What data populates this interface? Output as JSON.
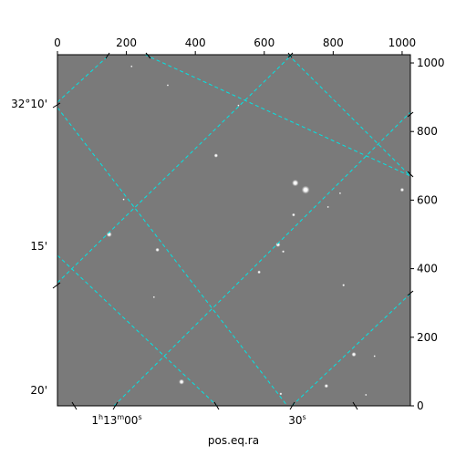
{
  "chart_data": {
    "type": "image",
    "xlabel": "pos.eq.ra",
    "top_axis": {
      "ticks": [
        0,
        200,
        400,
        600,
        800,
        1000
      ],
      "labels": [
        "0",
        "200",
        "400",
        "600",
        "800",
        "1000"
      ],
      "range": [
        0,
        1024
      ]
    },
    "right_axis": {
      "ticks": [
        0,
        200,
        400,
        600,
        800,
        1000
      ],
      "labels": [
        "0",
        "200",
        "400",
        "600",
        "800",
        "1000"
      ],
      "range": [
        0,
        1024
      ]
    },
    "ra_ticks": [
      {
        "label": "1h13m00s",
        "hours": "1",
        "minutes": "13",
        "seconds": "00"
      },
      {
        "label": "30s",
        "seconds": "30"
      }
    ],
    "dec_ticks": [
      {
        "label": "32°10'"
      },
      {
        "label": "15'"
      },
      {
        "label": "20'"
      }
    ],
    "grid": true,
    "grid_color": "#00e5e5",
    "background_color": "#7a7a7a",
    "sources": [
      {
        "x": 320,
        "y": 935,
        "r": 3
      },
      {
        "x": 525,
        "y": 876,
        "r": 2
      },
      {
        "x": 460,
        "y": 730,
        "r": 6
      },
      {
        "x": 690,
        "y": 650,
        "r": 10
      },
      {
        "x": 720,
        "y": 630,
        "r": 12
      },
      {
        "x": 1000,
        "y": 630,
        "r": 6
      },
      {
        "x": 685,
        "y": 557,
        "r": 5
      },
      {
        "x": 150,
        "y": 500,
        "r": 8
      },
      {
        "x": 290,
        "y": 455,
        "r": 6
      },
      {
        "x": 640,
        "y": 470,
        "r": 7
      },
      {
        "x": 655,
        "y": 450,
        "r": 4
      },
      {
        "x": 585,
        "y": 390,
        "r": 5
      },
      {
        "x": 830,
        "y": 352,
        "r": 4
      },
      {
        "x": 280,
        "y": 317,
        "r": 3
      },
      {
        "x": 860,
        "y": 150,
        "r": 7
      },
      {
        "x": 920,
        "y": 145,
        "r": 3
      },
      {
        "x": 360,
        "y": 70,
        "r": 8
      },
      {
        "x": 780,
        "y": 58,
        "r": 6
      },
      {
        "x": 648,
        "y": 35,
        "r": 4
      },
      {
        "x": 895,
        "y": 32,
        "r": 3
      },
      {
        "x": 192,
        "y": 602,
        "r": 2
      },
      {
        "x": 820,
        "y": 620,
        "r": 2
      },
      {
        "x": 215,
        "y": 990,
        "r": 2
      },
      {
        "x": 785,
        "y": 580,
        "r": 3
      }
    ]
  }
}
